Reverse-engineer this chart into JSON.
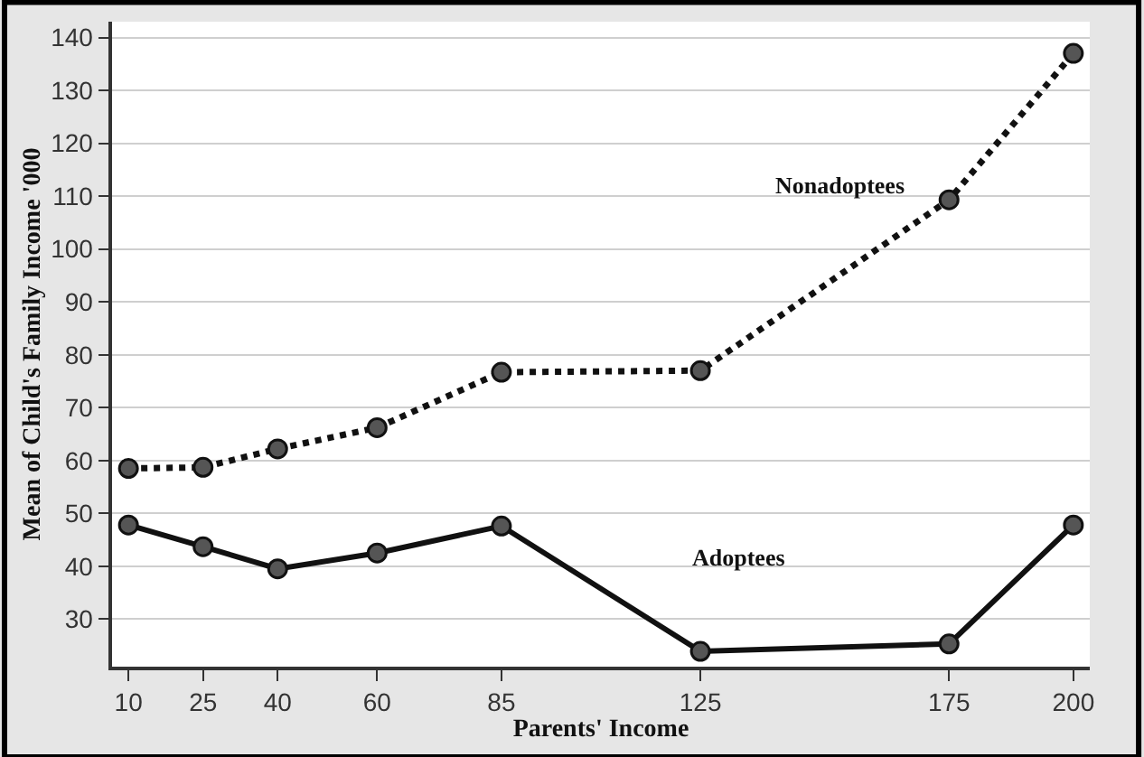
{
  "chart_data": {
    "type": "line",
    "xlabel": "Parents' Income",
    "ylabel": "Mean of Child's Family Income '000",
    "x": [
      10,
      25,
      40,
      60,
      85,
      125,
      175,
      200
    ],
    "series": [
      {
        "name": "Nonadoptees",
        "color": "#111111",
        "line_style": "dotted",
        "values": [
          58.5,
          58.7,
          62.2,
          66.2,
          76.7,
          77,
          109.3,
          137
        ]
      },
      {
        "name": "Adoptees",
        "color": "#111111",
        "line_style": "solid",
        "values": [
          47.8,
          43.7,
          39.5,
          42.5,
          47.6,
          23.9,
          25.3,
          47.8
        ]
      }
    ],
    "xlim": [
      6.7,
      203.3
    ],
    "xticks": [
      10,
      25,
      40,
      60,
      85,
      125,
      175,
      200
    ],
    "ylim": [
      21,
      143
    ],
    "yticks": [
      30,
      40,
      50,
      60,
      70,
      80,
      90,
      100,
      110,
      120,
      130,
      140
    ],
    "grid": "y",
    "legend": false,
    "marker": "circle"
  }
}
